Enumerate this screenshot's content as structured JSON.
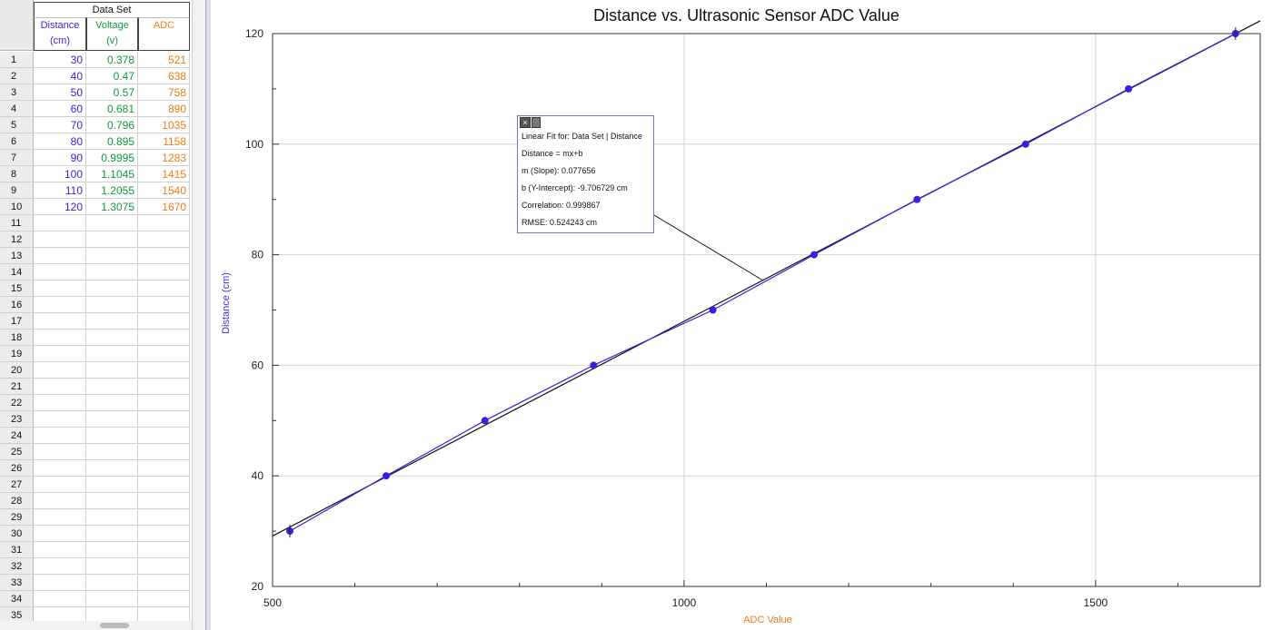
{
  "table": {
    "dataset_title": "Data Set",
    "columns": [
      {
        "name": "Distance",
        "unit": "(cm)",
        "color": "#3a1ee0"
      },
      {
        "name": "Voltage",
        "unit": "(v)",
        "color": "#129a3a"
      },
      {
        "name": "ADC",
        "unit": "",
        "color": "#f07c18"
      }
    ],
    "rows": [
      {
        "n": "1",
        "distance": "30",
        "voltage": "0.378",
        "adc": "521"
      },
      {
        "n": "2",
        "distance": "40",
        "voltage": "0.47",
        "adc": "638"
      },
      {
        "n": "3",
        "distance": "50",
        "voltage": "0.57",
        "adc": "758"
      },
      {
        "n": "4",
        "distance": "60",
        "voltage": "0.681",
        "adc": "890"
      },
      {
        "n": "5",
        "distance": "70",
        "voltage": "0.796",
        "adc": "1035"
      },
      {
        "n": "6",
        "distance": "80",
        "voltage": "0.895",
        "adc": "1158"
      },
      {
        "n": "7",
        "distance": "90",
        "voltage": "0.9995",
        "adc": "1283"
      },
      {
        "n": "8",
        "distance": "100",
        "voltage": "1.1045",
        "adc": "1415"
      },
      {
        "n": "9",
        "distance": "110",
        "voltage": "1.2055",
        "adc": "1540"
      },
      {
        "n": "10",
        "distance": "120",
        "voltage": "1.3075",
        "adc": "1670"
      },
      {
        "n": "11"
      },
      {
        "n": "12"
      },
      {
        "n": "13"
      },
      {
        "n": "14"
      },
      {
        "n": "15"
      },
      {
        "n": "16"
      },
      {
        "n": "17"
      },
      {
        "n": "18"
      },
      {
        "n": "19"
      },
      {
        "n": "20"
      },
      {
        "n": "21"
      },
      {
        "n": "22"
      },
      {
        "n": "23"
      },
      {
        "n": "24"
      },
      {
        "n": "25"
      },
      {
        "n": "26"
      },
      {
        "n": "27"
      },
      {
        "n": "28"
      },
      {
        "n": "29"
      },
      {
        "n": "30"
      },
      {
        "n": "31"
      },
      {
        "n": "32"
      },
      {
        "n": "33"
      },
      {
        "n": "34"
      },
      {
        "n": "35"
      }
    ]
  },
  "chart_data": {
    "type": "scatter",
    "title": "Distance vs. Ultrasonic Sensor ADC Value",
    "xlabel": "ADC Value",
    "ylabel": "Distance (cm)",
    "xlim": [
      500,
      1700
    ],
    "ylim": [
      20,
      120
    ],
    "x_ticks": [
      500,
      1000,
      1500
    ],
    "y_ticks": [
      20,
      40,
      60,
      80,
      100,
      120
    ],
    "grid": true,
    "series": [
      {
        "name": "Distance",
        "color": "#3a1ee0",
        "x": [
          521,
          638,
          758,
          890,
          1035,
          1158,
          1283,
          1415,
          1540,
          1670
        ],
        "y": [
          30,
          40,
          50,
          60,
          70,
          80,
          90,
          100,
          110,
          120
        ]
      }
    ],
    "fit": {
      "title": "Linear Fit for: Data Set | Distance",
      "equation": "Distance = mx+b",
      "slope_text": "m (Slope): 0.077656",
      "intercept_text": "b (Y-Intercept): -9.706729 cm",
      "correlation_text": "Correlation: 0.999867",
      "rmse_text": "RMSE: 0.524243 cm",
      "slope": 0.077656,
      "intercept": -9.706729,
      "color": "#111111"
    }
  }
}
